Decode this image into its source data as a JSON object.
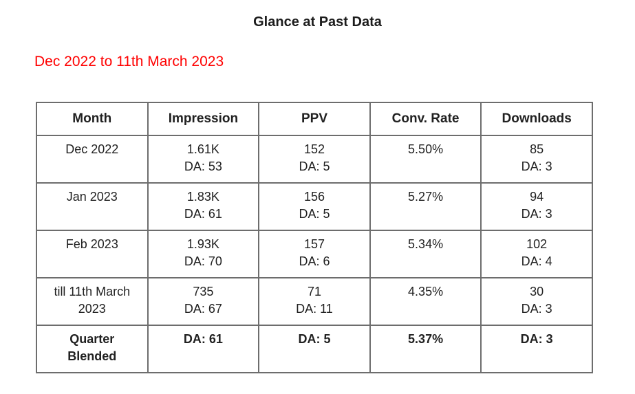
{
  "title": "Glance at Past Data",
  "subtitle": "Dec 2022 to 11th March 2023",
  "colors": {
    "subtitle_red": "#ff0000",
    "table_border": "#6d6d6d",
    "text": "#212121"
  },
  "table": {
    "headers": [
      "Month",
      "Impression",
      "PPV",
      "Conv. Rate",
      "Downloads"
    ],
    "rows": [
      [
        [
          "Dec 2022"
        ],
        [
          "1.61K",
          "DA: 53"
        ],
        [
          "152",
          "DA: 5"
        ],
        [
          "5.50%"
        ],
        [
          "85",
          "DA: 3"
        ]
      ],
      [
        [
          "Jan 2023"
        ],
        [
          "1.83K",
          "DA: 61"
        ],
        [
          "156",
          "DA: 5"
        ],
        [
          "5.27%"
        ],
        [
          "94",
          "DA: 3"
        ]
      ],
      [
        [
          "Feb 2023"
        ],
        [
          "1.93K",
          "DA: 70"
        ],
        [
          "157",
          "DA: 6"
        ],
        [
          "5.34%"
        ],
        [
          "102",
          "DA: 4"
        ]
      ],
      [
        [
          "till 11th March",
          "2023"
        ],
        [
          "735",
          "DA: 67"
        ],
        [
          "71",
          "DA: 11"
        ],
        [
          "4.35%"
        ],
        [
          "30",
          "DA: 3"
        ]
      ],
      [
        [
          "Quarter",
          "Blended"
        ],
        [
          "DA: 61"
        ],
        [
          "DA: 5"
        ],
        [
          "5.37%"
        ],
        [
          "DA: 3"
        ]
      ]
    ]
  }
}
